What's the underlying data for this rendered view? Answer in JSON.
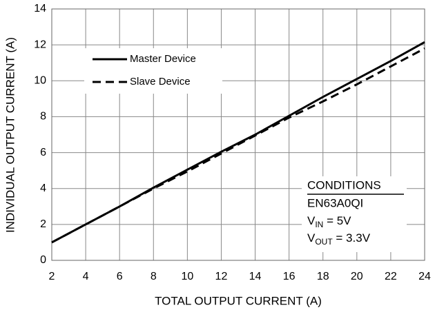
{
  "chart_data": {
    "type": "line",
    "xlabel": "TOTAL OUTPUT CURRENT (A)",
    "ylabel": "INDIVIDUAL OUTPUT CURRENT (A)",
    "x": [
      2,
      4,
      6,
      8,
      10,
      12,
      14,
      16,
      18,
      20,
      22,
      24
    ],
    "series": [
      {
        "name": "Master Device",
        "color": "#000000",
        "dash": "solid",
        "values": [
          1,
          2,
          3,
          4.05,
          5.05,
          6.05,
          7,
          8.05,
          9.1,
          10.1,
          11.1,
          12.15
        ]
      },
      {
        "name": "Slave Device",
        "color": "#000000",
        "dash": "dashed",
        "values": [
          1,
          2,
          3,
          4,
          4.95,
          5.95,
          6.95,
          7.95,
          8.85,
          9.8,
          10.8,
          11.8
        ]
      }
    ],
    "xlim": [
      2,
      24
    ],
    "xticks": [
      2,
      4,
      6,
      8,
      10,
      12,
      14,
      16,
      18,
      20,
      22,
      24
    ],
    "ylim": [
      0,
      14
    ],
    "yticks": [
      0,
      2,
      4,
      6,
      8,
      10,
      12,
      14
    ],
    "grid": true,
    "legend": "upper left",
    "conditions": {
      "title": "CONDITIONS",
      "device": "EN63A0QI",
      "lines": [
        {
          "symbol": "V",
          "sub": "IN",
          "rest": " = 5V"
        },
        {
          "symbol": "V",
          "sub": "OUT",
          "rest": " = 3.3V"
        }
      ]
    }
  }
}
